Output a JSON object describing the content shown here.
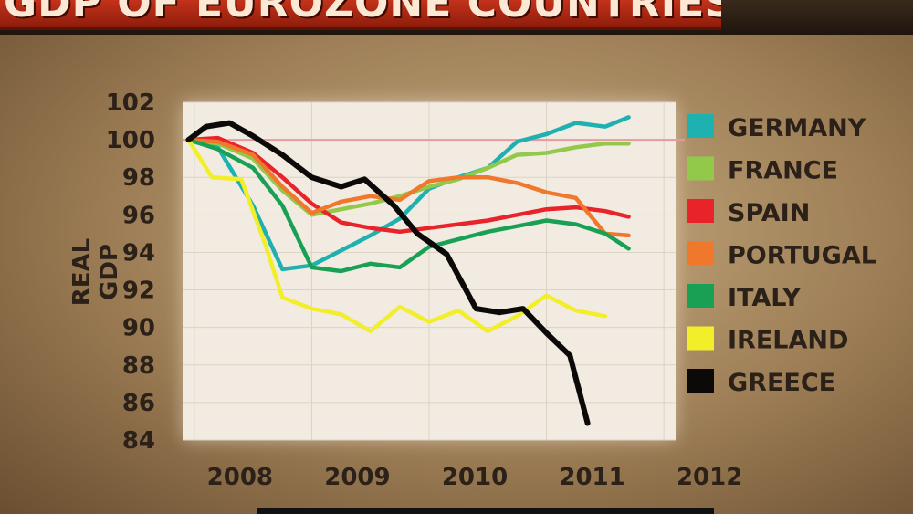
{
  "title": "GDP OF EUROZONE COUNTRIES",
  "chart_data": {
    "type": "line",
    "ylabel": "REAL GDP",
    "xlabel": "",
    "ylim": [
      84,
      102
    ],
    "xlim": [
      2007.9,
      2012.1
    ],
    "yticks": [
      84,
      86,
      88,
      90,
      92,
      94,
      96,
      98,
      100,
      102
    ],
    "xticks": [
      2008,
      2009,
      2010,
      2011,
      2012
    ],
    "xtick_labels": [
      "2008",
      "2009",
      "2010",
      "2011",
      "2012"
    ],
    "grid": true,
    "reference_line": 100,
    "legend_position": "right",
    "series": [
      {
        "name": "GERMANY",
        "color": "#1fb1b0",
        "x": [
          2007.95,
          2008.2,
          2008.5,
          2008.75,
          2009.0,
          2009.25,
          2009.5,
          2009.75,
          2010.0,
          2010.25,
          2010.5,
          2010.75,
          2011.0,
          2011.25,
          2011.5,
          2011.7
        ],
        "y": [
          100,
          99.6,
          96.5,
          93.1,
          93.3,
          94.1,
          94.9,
          95.8,
          97.4,
          98.0,
          98.5,
          99.9,
          100.3,
          100.9,
          100.7,
          101.2
        ]
      },
      {
        "name": "FRANCE",
        "color": "#93c94a",
        "x": [
          2007.95,
          2008.2,
          2008.5,
          2008.75,
          2009.0,
          2009.25,
          2009.5,
          2009.75,
          2010.0,
          2010.25,
          2010.5,
          2010.75,
          2011.0,
          2011.25,
          2011.5,
          2011.7
        ],
        "y": [
          100,
          99.8,
          99.0,
          97.3,
          96.0,
          96.3,
          96.6,
          97.0,
          97.5,
          97.9,
          98.5,
          99.2,
          99.3,
          99.6,
          99.8,
          99.8
        ]
      },
      {
        "name": "SPAIN",
        "color": "#e8232a",
        "x": [
          2007.95,
          2008.2,
          2008.5,
          2008.75,
          2009.0,
          2009.25,
          2009.5,
          2009.75,
          2010.0,
          2010.25,
          2010.5,
          2010.75,
          2011.0,
          2011.25,
          2011.5,
          2011.7
        ],
        "y": [
          100,
          100.1,
          99.3,
          98.0,
          96.6,
          95.6,
          95.3,
          95.1,
          95.3,
          95.5,
          95.7,
          96.0,
          96.3,
          96.4,
          96.2,
          95.9
        ]
      },
      {
        "name": "PORTUGAL",
        "color": "#f0782c",
        "x": [
          2007.95,
          2008.2,
          2008.5,
          2008.75,
          2009.0,
          2009.25,
          2009.5,
          2009.75,
          2010.0,
          2010.25,
          2010.5,
          2010.75,
          2011.0,
          2011.25,
          2011.5,
          2011.7
        ],
        "y": [
          100,
          99.9,
          99.2,
          97.5,
          96.1,
          96.7,
          97.0,
          96.8,
          97.8,
          98.0,
          98.0,
          97.7,
          97.2,
          96.9,
          95.0,
          94.9
        ]
      },
      {
        "name": "ITALY",
        "color": "#1aa055",
        "x": [
          2007.95,
          2008.2,
          2008.5,
          2008.75,
          2009.0,
          2009.25,
          2009.5,
          2009.75,
          2010.0,
          2010.25,
          2010.5,
          2010.75,
          2011.0,
          2011.25,
          2011.5,
          2011.7
        ],
        "y": [
          100,
          99.5,
          98.5,
          96.5,
          93.2,
          93.0,
          93.4,
          93.2,
          94.3,
          94.7,
          95.1,
          95.4,
          95.7,
          95.5,
          95.0,
          94.2
        ]
      },
      {
        "name": "IRELAND",
        "color": "#f2ee2a",
        "x": [
          2007.95,
          2008.15,
          2008.4,
          2008.6,
          2008.75,
          2009.0,
          2009.25,
          2009.5,
          2009.75,
          2010.0,
          2010.25,
          2010.5,
          2010.75,
          2011.0,
          2011.25,
          2011.5
        ],
        "y": [
          100,
          98.0,
          97.9,
          94.5,
          91.6,
          91.0,
          90.7,
          89.8,
          91.1,
          90.3,
          90.9,
          89.8,
          90.6,
          91.7,
          90.9,
          90.6
        ]
      },
      {
        "name": "GREECE",
        "color": "#0c0a09",
        "x": [
          2007.95,
          2008.1,
          2008.3,
          2008.5,
          2008.75,
          2009.0,
          2009.25,
          2009.45,
          2009.7,
          2009.9,
          2010.15,
          2010.4,
          2010.6,
          2010.8,
          2011.0,
          2011.2,
          2011.35
        ],
        "y": [
          100,
          100.7,
          100.9,
          100.2,
          99.2,
          98.0,
          97.5,
          97.9,
          96.5,
          95.0,
          93.9,
          91.0,
          90.8,
          91.0,
          89.7,
          88.5,
          84.9
        ]
      }
    ]
  }
}
